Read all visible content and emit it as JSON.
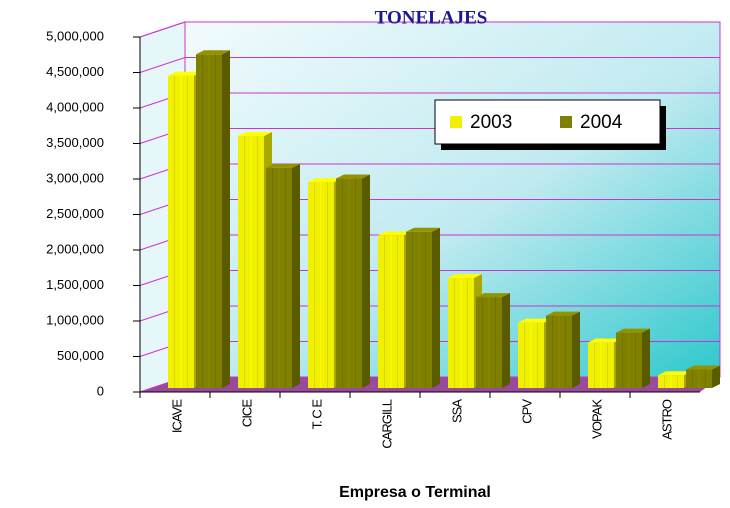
{
  "chart_data": {
    "type": "bar3d",
    "title": "TONELAJES",
    "x_label": "Empresa o Terminal",
    "categories": [
      "ICAVE",
      "CICE",
      "T. C E",
      "CARGILL",
      "SSA",
      "CPV",
      "VOPAK",
      "ASTRO"
    ],
    "series": [
      {
        "name": "2003",
        "color": "#f0f000",
        "values": [
          4400000,
          3550000,
          2900000,
          2150000,
          1550000,
          920000,
          640000,
          180000
        ]
      },
      {
        "name": "2004",
        "color": "#808000",
        "values": [
          4700000,
          3100000,
          2950000,
          2200000,
          1280000,
          1020000,
          780000,
          260000
        ]
      }
    ],
    "ylim": [
      0,
      5000000
    ],
    "yticks": [
      0,
      {
        "value": 500000,
        "label": "500,000"
      },
      {
        "value": 1000000,
        "label": "1,000,000"
      },
      {
        "value": 1500000,
        "label": "1,500,000"
      },
      {
        "value": 2000000,
        "label": "2,000,000"
      },
      {
        "value": 2500000,
        "label": "2,500,000"
      },
      {
        "value": 3000000,
        "label": "3,000,000"
      },
      {
        "value": 3500000,
        "label": "3,500,000"
      },
      {
        "value": 4000000,
        "label": "4,000,000"
      },
      {
        "value": 4500000,
        "label": "4,500,000"
      },
      {
        "value": 5000000,
        "label": "5,000,000"
      }
    ],
    "grid": true
  }
}
